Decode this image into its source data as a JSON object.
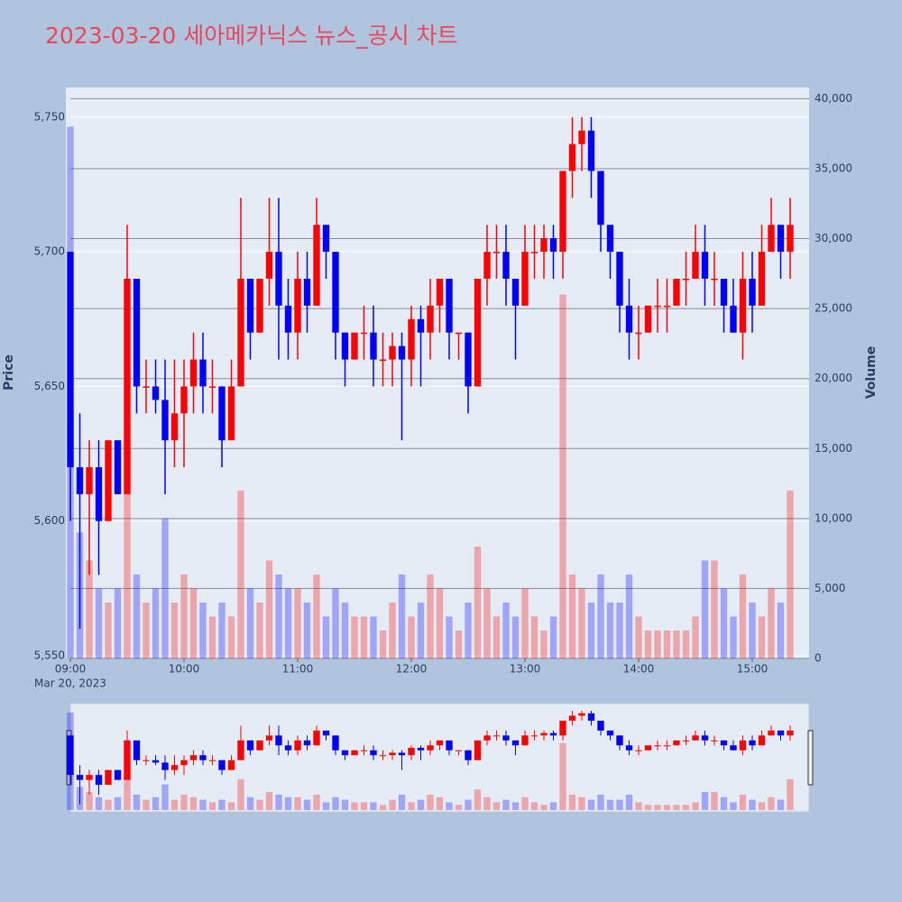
{
  "chart_data": {
    "type": "candlestick",
    "title": "2023-03-20 세아메카닉스 뉴스_공시 차트",
    "y_title": "Price",
    "y2_title": "Volume",
    "x_date_label": "Mar 20, 2023",
    "xlim": [
      "2023-03-20 09:00",
      "2023-03-20 15:30"
    ],
    "xticks": [
      {
        "value": "2023-03-20 09:00",
        "label": "09:00"
      },
      {
        "value": "2023-03-20 10:00",
        "label": "10:00"
      },
      {
        "value": "2023-03-20 11:00",
        "label": "11:00"
      },
      {
        "value": "2023-03-20 12:00",
        "label": "12:00"
      },
      {
        "value": "2023-03-20 13:00",
        "label": "13:00"
      },
      {
        "value": "2023-03-20 14:00",
        "label": "14:00"
      },
      {
        "value": "2023-03-20 15:00",
        "label": "15:00"
      }
    ],
    "ylim": [
      5549,
      5761
    ],
    "yticks": [
      {
        "value": 5550,
        "label": "5,550"
      },
      {
        "value": 5600,
        "label": "5,600"
      },
      {
        "value": 5650,
        "label": "5,650"
      },
      {
        "value": 5700,
        "label": "5,700"
      },
      {
        "value": 5750,
        "label": "5,750"
      }
    ],
    "y2lim": [
      0,
      40800
    ],
    "y2ticks": [
      0,
      {
        "value": 5000,
        "label": "5,000"
      },
      {
        "value": 10000,
        "label": "10,000"
      },
      {
        "value": 15000,
        "label": "15,000"
      },
      {
        "value": 20000,
        "label": "20,000"
      },
      {
        "value": 25000,
        "label": "25,000"
      },
      {
        "value": 30000,
        "label": "30,000"
      },
      {
        "value": 35000,
        "label": "35,000"
      },
      {
        "value": 40000,
        "label": "40,000"
      }
    ],
    "increasing_color": "#ff0000",
    "decreasing_color": "#0000ff",
    "grid": true,
    "range_slider": true,
    "x": [
      "2023-03-20 09:00",
      "2023-03-20 09:05",
      "2023-03-20 09:10",
      "2023-03-20 09:15",
      "2023-03-20 09:20",
      "2023-03-20 09:25",
      "2023-03-20 09:30",
      "2023-03-20 09:35",
      "2023-03-20 09:40",
      "2023-03-20 09:45",
      "2023-03-20 09:50",
      "2023-03-20 09:55",
      "2023-03-20 10:00",
      "2023-03-20 10:05",
      "2023-03-20 10:10",
      "2023-03-20 10:15",
      "2023-03-20 10:20",
      "2023-03-20 10:25",
      "2023-03-20 10:30",
      "2023-03-20 10:35",
      "2023-03-20 10:40",
      "2023-03-20 10:45",
      "2023-03-20 10:50",
      "2023-03-20 10:55",
      "2023-03-20 11:00",
      "2023-03-20 11:05",
      "2023-03-20 11:10",
      "2023-03-20 11:15",
      "2023-03-20 11:20",
      "2023-03-20 11:25",
      "2023-03-20 11:30",
      "2023-03-20 11:35",
      "2023-03-20 11:40",
      "2023-03-20 11:45",
      "2023-03-20 11:50",
      "2023-03-20 11:55",
      "2023-03-20 12:00",
      "2023-03-20 12:05",
      "2023-03-20 12:10",
      "2023-03-20 12:15",
      "2023-03-20 12:20",
      "2023-03-20 12:25",
      "2023-03-20 12:30",
      "2023-03-20 12:35",
      "2023-03-20 12:40",
      "2023-03-20 12:45",
      "2023-03-20 12:50",
      "2023-03-20 12:55",
      "2023-03-20 13:00",
      "2023-03-20 13:05",
      "2023-03-20 13:10",
      "2023-03-20 13:15",
      "2023-03-20 13:20",
      "2023-03-20 13:25",
      "2023-03-20 13:30",
      "2023-03-20 13:35",
      "2023-03-20 13:40",
      "2023-03-20 13:45",
      "2023-03-20 13:50",
      "2023-03-20 13:55",
      "2023-03-20 14:00",
      "2023-03-20 14:05",
      "2023-03-20 14:10",
      "2023-03-20 14:15",
      "2023-03-20 14:20",
      "2023-03-20 14:25",
      "2023-03-20 14:30",
      "2023-03-20 14:35",
      "2023-03-20 14:40",
      "2023-03-20 14:45",
      "2023-03-20 14:50",
      "2023-03-20 14:55",
      "2023-03-20 15:00",
      "2023-03-20 15:05",
      "2023-03-20 15:10",
      "2023-03-20 15:15",
      "2023-03-20 15:20"
    ],
    "open": [
      5700,
      5620,
      5610,
      5620,
      5600,
      5630,
      5610,
      5690,
      5650,
      5650,
      5645,
      5630,
      5640,
      5650,
      5660,
      5650,
      5650,
      5630,
      5650,
      5690,
      5670,
      5690,
      5700,
      5680,
      5670,
      5690,
      5680,
      5710,
      5700,
      5670,
      5660,
      5670,
      5670,
      5660,
      5660,
      5665,
      5660,
      5675,
      5670,
      5680,
      5690,
      5670,
      5670,
      5650,
      5690,
      5700,
      5700,
      5690,
      5680,
      5700,
      5700,
      5705,
      5700,
      5730,
      5740,
      5745,
      5730,
      5710,
      5700,
      5680,
      5670,
      5670,
      5680,
      5680,
      5680,
      5690,
      5690,
      5700,
      5690,
      5690,
      5680,
      5670,
      5690,
      5680,
      5700,
      5710,
      5700
    ],
    "high": [
      5700,
      5640,
      5630,
      5630,
      5630,
      5630,
      5710,
      5690,
      5660,
      5660,
      5660,
      5660,
      5660,
      5670,
      5670,
      5660,
      5650,
      5660,
      5720,
      5690,
      5690,
      5720,
      5720,
      5690,
      5700,
      5700,
      5720,
      5710,
      5700,
      5670,
      5670,
      5680,
      5680,
      5670,
      5670,
      5670,
      5680,
      5680,
      5690,
      5690,
      5690,
      5670,
      5670,
      5690,
      5710,
      5710,
      5710,
      5690,
      5710,
      5710,
      5710,
      5710,
      5730,
      5750,
      5750,
      5750,
      5730,
      5710,
      5700,
      5690,
      5680,
      5680,
      5690,
      5690,
      5690,
      5700,
      5710,
      5710,
      5700,
      5690,
      5690,
      5700,
      5700,
      5710,
      5720,
      5710,
      5720
    ],
    "low": [
      5600,
      5560,
      5580,
      5580,
      5600,
      5610,
      5610,
      5640,
      5640,
      5640,
      5610,
      5620,
      5620,
      5640,
      5640,
      5640,
      5620,
      5630,
      5650,
      5660,
      5670,
      5680,
      5660,
      5660,
      5660,
      5670,
      5680,
      5690,
      5660,
      5650,
      5660,
      5660,
      5650,
      5650,
      5650,
      5630,
      5650,
      5650,
      5660,
      5670,
      5660,
      5660,
      5640,
      5650,
      5680,
      5690,
      5680,
      5660,
      5680,
      5690,
      5690,
      5690,
      5690,
      5720,
      5730,
      5720,
      5700,
      5690,
      5670,
      5660,
      5660,
      5670,
      5670,
      5670,
      5680,
      5680,
      5690,
      5680,
      5680,
      5670,
      5670,
      5660,
      5670,
      5680,
      5700,
      5690,
      5690
    ],
    "close": [
      5620,
      5610,
      5620,
      5600,
      5630,
      5610,
      5690,
      5650,
      5650,
      5645,
      5630,
      5640,
      5650,
      5660,
      5650,
      5650,
      5630,
      5650,
      5690,
      5670,
      5690,
      5700,
      5680,
      5670,
      5690,
      5680,
      5710,
      5700,
      5670,
      5660,
      5670,
      5670,
      5660,
      5660,
      5665,
      5660,
      5675,
      5670,
      5680,
      5690,
      5670,
      5670,
      5650,
      5690,
      5700,
      5700,
      5690,
      5680,
      5700,
      5700,
      5705,
      5700,
      5730,
      5740,
      5745,
      5730,
      5710,
      5700,
      5680,
      5670,
      5670,
      5680,
      5680,
      5680,
      5690,
      5690,
      5700,
      5690,
      5690,
      5680,
      5670,
      5690,
      5680,
      5700,
      5710,
      5700,
      5710
    ],
    "volume": [
      38000,
      9000,
      7000,
      5000,
      4000,
      5000,
      16000,
      6000,
      4000,
      5000,
      10000,
      4000,
      6000,
      5000,
      4000,
      3000,
      4000,
      3000,
      12000,
      5000,
      4000,
      7000,
      6000,
      5000,
      5000,
      4000,
      6000,
      3000,
      5000,
      4000,
      3000,
      3000,
      3000,
      2000,
      4000,
      6000,
      3000,
      4000,
      6000,
      5000,
      3000,
      2000,
      4000,
      8000,
      5000,
      3000,
      4000,
      3000,
      5000,
      3000,
      2000,
      3000,
      26000,
      6000,
      5000,
      4000,
      6000,
      4000,
      4000,
      6000,
      3000,
      2000,
      2000,
      2000,
      2000,
      2000,
      3000,
      7000,
      7000,
      5000,
      3000,
      6000,
      4000,
      3000,
      5000,
      4000,
      12000
    ]
  }
}
